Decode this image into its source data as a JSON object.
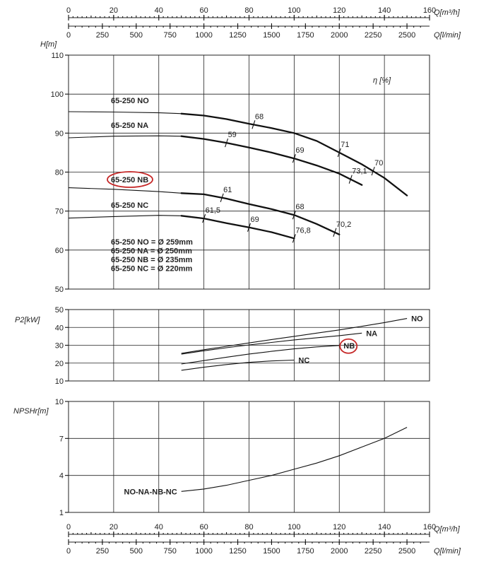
{
  "chart_data": [
    {
      "id": "top-axis",
      "type": "axis",
      "q_m3h_ticks": [
        0,
        20,
        40,
        60,
        80,
        100,
        120,
        140,
        160
      ],
      "q_lmin_ticks": [
        0,
        250,
        500,
        750,
        1000,
        1250,
        1500,
        1750,
        2000,
        2250,
        2500
      ],
      "q_m3h_unit": "Q[m³/h]",
      "q_lmin_unit": "Q[l/min]"
    },
    {
      "id": "head",
      "type": "line",
      "ylabel": "H[m]",
      "eta_label": "η [%]",
      "ylim": [
        50,
        110
      ],
      "xlim": [
        0,
        160
      ],
      "y_ticks": [
        50,
        60,
        70,
        80,
        90,
        100,
        110
      ],
      "series": [
        {
          "name": "65-250 NO",
          "points": [
            [
              0,
              95.5
            ],
            [
              20,
              95.4
            ],
            [
              40,
              95.2
            ],
            [
              50,
              95.0
            ],
            [
              60,
              94.5
            ],
            [
              70,
              93.6
            ],
            [
              80,
              92.4
            ],
            [
              90,
              91.3
            ],
            [
              100,
              90.0
            ],
            [
              110,
              88.0
            ],
            [
              120,
              85.0
            ],
            [
              130,
              82.0
            ],
            [
              140,
              78.5
            ],
            [
              150,
              74.0
            ]
          ]
        },
        {
          "name": "65-250 NA",
          "points": [
            [
              0,
              88.8
            ],
            [
              20,
              89.2
            ],
            [
              40,
              89.3
            ],
            [
              50,
              89.2
            ],
            [
              60,
              88.5
            ],
            [
              70,
              87.5
            ],
            [
              80,
              86.3
            ],
            [
              90,
              85.0
            ],
            [
              100,
              83.5
            ],
            [
              110,
              81.7
            ],
            [
              120,
              79.6
            ],
            [
              130,
              76.7
            ]
          ]
        },
        {
          "name": "65-250 NB",
          "points": [
            [
              0,
              76.0
            ],
            [
              20,
              75.6
            ],
            [
              40,
              75.0
            ],
            [
              50,
              74.6
            ],
            [
              60,
              74.3
            ],
            [
              70,
              73.2
            ],
            [
              80,
              71.8
            ],
            [
              90,
              70.5
            ],
            [
              100,
              69.0
            ],
            [
              110,
              66.7
            ],
            [
              120,
              64.0
            ]
          ]
        },
        {
          "name": "65-250 NC",
          "points": [
            [
              0,
              68.2
            ],
            [
              20,
              68.6
            ],
            [
              40,
              68.9
            ],
            [
              50,
              68.8
            ],
            [
              60,
              68.1
            ],
            [
              70,
              66.9
            ],
            [
              80,
              65.8
            ],
            [
              90,
              64.6
            ],
            [
              100,
              63.0
            ]
          ]
        }
      ],
      "eta_marks": [
        {
          "series": 0,
          "x": 82,
          "value": "68"
        },
        {
          "series": 0,
          "x": 120,
          "value": "71"
        },
        {
          "series": 0,
          "x": 135,
          "value": "70"
        },
        {
          "series": 1,
          "x": 70,
          "value": "59"
        },
        {
          "series": 1,
          "x": 100,
          "value": "69"
        },
        {
          "series": 1,
          "x": 125,
          "value": "73,1"
        },
        {
          "series": 2,
          "x": 68,
          "value": "61"
        },
        {
          "series": 2,
          "x": 100,
          "value": "68"
        },
        {
          "series": 2,
          "x": 118,
          "value": "70,2"
        },
        {
          "series": 3,
          "x": 60,
          "value": "61,5"
        },
        {
          "series": 3,
          "x": 80,
          "value": "69"
        },
        {
          "series": 3,
          "x": 100,
          "value": "76,8"
        }
      ],
      "legend": [
        "65-250 NO = Ø 259mm",
        "65-250 NA = Ø 250mm",
        "65-250 NB = Ø 235mm",
        "65-250 NC = Ø 220mm"
      ],
      "highlight_color": "#c62828"
    },
    {
      "id": "power",
      "type": "line",
      "ylabel": "P2[kW]",
      "ylim": [
        10,
        50
      ],
      "xlim": [
        0,
        160
      ],
      "y_ticks": [
        10,
        20,
        30,
        40,
        50
      ],
      "series": [
        {
          "name": "NO",
          "points": [
            [
              50,
              25.5
            ],
            [
              60,
              27.5
            ],
            [
              70,
              29.4
            ],
            [
              80,
              31.3
            ],
            [
              90,
              33.2
            ],
            [
              100,
              35.0
            ],
            [
              110,
              36.8
            ],
            [
              120,
              38.6
            ],
            [
              130,
              40.6
            ],
            [
              140,
              42.7
            ],
            [
              150,
              45.0
            ]
          ]
        },
        {
          "name": "NA",
          "points": [
            [
              50,
              25.0
            ],
            [
              60,
              26.9
            ],
            [
              70,
              28.6
            ],
            [
              80,
              30.2
            ],
            [
              90,
              31.6
            ],
            [
              100,
              33.0
            ],
            [
              110,
              34.2
            ],
            [
              120,
              35.4
            ],
            [
              130,
              36.8
            ]
          ]
        },
        {
          "name": "NB",
          "points": [
            [
              50,
              19.5
            ],
            [
              60,
              21.4
            ],
            [
              70,
              23.3
            ],
            [
              80,
              25.1
            ],
            [
              90,
              26.6
            ],
            [
              100,
              28.0
            ],
            [
              110,
              29.1
            ],
            [
              120,
              29.9
            ]
          ]
        },
        {
          "name": "NC",
          "points": [
            [
              50,
              16.0
            ],
            [
              60,
              17.7
            ],
            [
              70,
              19.2
            ],
            [
              80,
              20.4
            ],
            [
              90,
              21.2
            ],
            [
              100,
              21.7
            ]
          ]
        }
      ]
    },
    {
      "id": "npsh",
      "type": "line",
      "ylabel": "NPSHr[m]",
      "ylim": [
        1,
        10
      ],
      "xlim": [
        0,
        160
      ],
      "y_ticks": [
        1,
        4,
        7,
        10
      ],
      "series": [
        {
          "name": "NO-NA-NB-NC",
          "points": [
            [
              50,
              2.7
            ],
            [
              60,
              2.9
            ],
            [
              70,
              3.2
            ],
            [
              80,
              3.6
            ],
            [
              90,
              4.0
            ],
            [
              100,
              4.5
            ],
            [
              110,
              5.0
            ],
            [
              120,
              5.6
            ],
            [
              130,
              6.3
            ],
            [
              140,
              7.0
            ],
            [
              150,
              7.9
            ]
          ]
        }
      ]
    }
  ]
}
